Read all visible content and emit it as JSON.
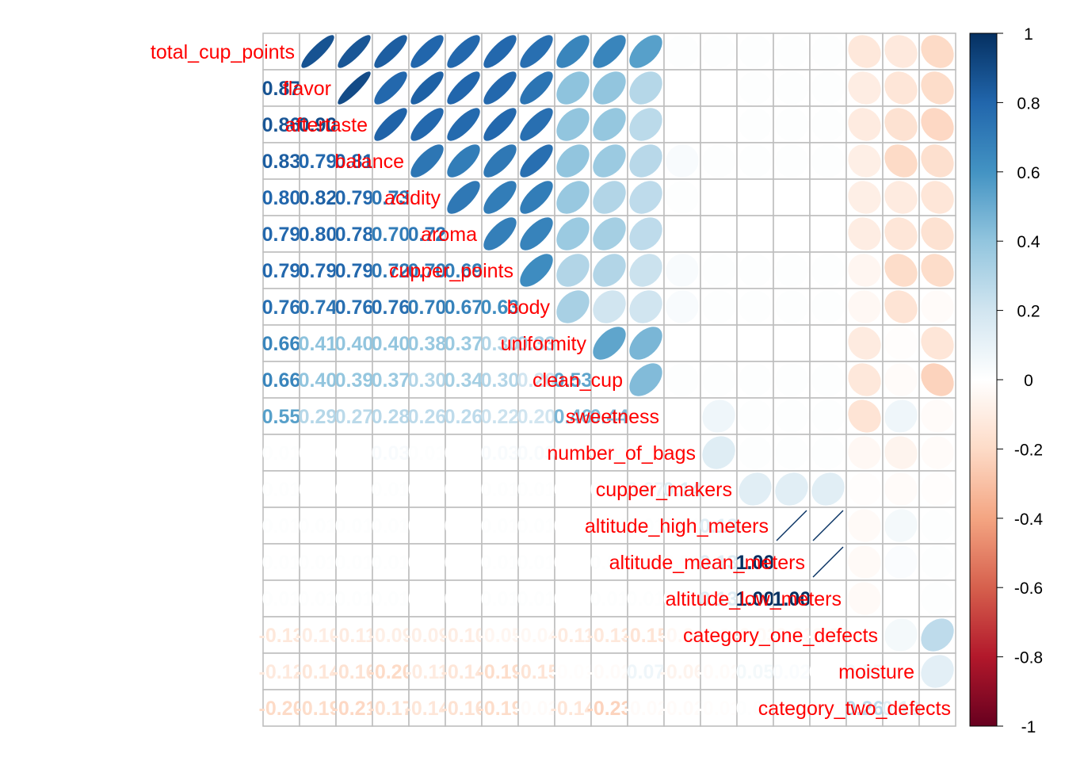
{
  "chart_data": {
    "type": "heatmap",
    "method": "mixed: ellipse (upper), number (lower)",
    "variables": [
      "total_cup_points",
      "flavor",
      "aftertaste",
      "balance",
      "acidity",
      "aroma",
      "cupper_points",
      "body",
      "uniformity",
      "clean_cup",
      "sweetness",
      "number_of_bags",
      "cupper_makers",
      "altitude_high_meters",
      "altitude_mean_meters",
      "altitude_low_meters",
      "category_one_defects",
      "moisture",
      "category_two_defects"
    ],
    "diag_labels": [
      "total_cup_points",
      "flavor",
      "aftertaste",
      "balance",
      "acidity",
      "aroma",
      "cupper_points",
      "body",
      "uniformity",
      "clean_cup",
      "sweetness",
      "number_of_bags",
      "cupper_makers",
      "altitude_high_meters",
      "altitude_mean_meters",
      "altitude_low_meters",
      "category_one_defects",
      "moisture",
      "category_two_defects"
    ],
    "matrix": [
      [
        1.0,
        0.87,
        0.86,
        0.83,
        0.8,
        0.79,
        0.79,
        0.76,
        0.66,
        0.66,
        0.55,
        0.01,
        0.01,
        0.01,
        0.01,
        0.01,
        -0.13,
        -0.12,
        -0.2
      ],
      [
        0.87,
        1.0,
        0.9,
        0.79,
        0.82,
        0.8,
        0.79,
        0.74,
        0.41,
        0.4,
        0.29,
        0.0,
        0.0,
        0.01,
        0.01,
        0.01,
        -0.1,
        -0.14,
        -0.19
      ],
      [
        0.86,
        0.9,
        1.0,
        0.81,
        0.79,
        0.78,
        0.79,
        0.76,
        0.4,
        0.39,
        0.27,
        0.0,
        0.0,
        0.01,
        0.01,
        0.01,
        -0.11,
        -0.16,
        -0.21
      ],
      [
        0.83,
        0.79,
        0.81,
        1.0,
        0.73,
        0.7,
        0.72,
        0.76,
        0.4,
        0.37,
        0.28,
        0.03,
        0.01,
        0.01,
        0.01,
        0.01,
        -0.09,
        -0.2,
        -0.17
      ],
      [
        0.8,
        0.82,
        0.79,
        0.73,
        1.0,
        0.72,
        0.7,
        0.7,
        0.38,
        0.3,
        0.26,
        0.01,
        0.0,
        0.0,
        0.0,
        0.0,
        -0.09,
        -0.11,
        -0.14
      ],
      [
        0.79,
        0.8,
        0.78,
        0.7,
        0.72,
        1.0,
        0.69,
        0.67,
        0.37,
        0.34,
        0.26,
        0.0,
        0.0,
        0.0,
        0.0,
        0.0,
        -0.1,
        -0.14,
        -0.16
      ],
      [
        0.79,
        0.79,
        0.79,
        0.72,
        0.7,
        0.69,
        1.0,
        0.63,
        0.3,
        0.3,
        0.22,
        0.03,
        0.01,
        0.01,
        0.01,
        0.01,
        -0.05,
        -0.19,
        -0.19
      ],
      [
        0.76,
        0.74,
        0.76,
        0.76,
        0.7,
        0.67,
        0.63,
        1.0,
        0.33,
        0.2,
        0.2,
        0.03,
        0.01,
        0.01,
        0.01,
        0.01,
        -0.04,
        -0.15,
        -0.02
      ],
      [
        0.66,
        0.41,
        0.4,
        0.4,
        0.38,
        0.37,
        0.3,
        0.33,
        1.0,
        0.53,
        0.46,
        0.0,
        0.0,
        0.0,
        0.0,
        0.0,
        -0.11,
        -0.01,
        -0.14
      ],
      [
        0.66,
        0.4,
        0.39,
        0.37,
        0.3,
        0.34,
        0.3,
        0.2,
        0.53,
        1.0,
        0.44,
        0.01,
        0.01,
        0.01,
        0.01,
        0.01,
        -0.13,
        -0.02,
        -0.23
      ],
      [
        0.55,
        0.29,
        0.27,
        0.28,
        0.26,
        0.26,
        0.22,
        0.2,
        0.46,
        0.44,
        1.0,
        0.0,
        0.07,
        0.01,
        0.01,
        0.01,
        -0.15,
        0.07,
        -0.02
      ],
      [
        0.01,
        0.0,
        0.0,
        0.03,
        0.01,
        0.0,
        0.03,
        0.03,
        0.0,
        0.01,
        0.0,
        1.0,
        0.14,
        0.01,
        0.01,
        0.01,
        -0.04,
        -0.06,
        -0.02
      ],
      [
        0.01,
        0.0,
        0.0,
        0.01,
        0.0,
        0.0,
        0.01,
        0.01,
        0.0,
        0.01,
        0.07,
        0.14,
        1.0,
        0.13,
        0.13,
        0.13,
        -0.01,
        -0.02,
        -0.01
      ],
      [
        0.01,
        0.01,
        0.01,
        0.01,
        0.0,
        0.0,
        0.01,
        0.01,
        0.0,
        0.01,
        0.01,
        0.01,
        0.13,
        1.0,
        1.0,
        1.0,
        -0.03,
        0.05,
        0.01
      ],
      [
        0.01,
        0.01,
        0.01,
        0.01,
        0.0,
        0.0,
        0.01,
        0.01,
        0.0,
        0.01,
        0.01,
        0.01,
        0.13,
        1.0,
        1.0,
        1.0,
        -0.03,
        0.02,
        0.01
      ],
      [
        0.01,
        0.01,
        0.01,
        0.01,
        0.0,
        0.0,
        0.01,
        0.01,
        0.0,
        0.01,
        0.01,
        0.01,
        0.13,
        1.0,
        1.0,
        1.0,
        -0.03,
        0.0,
        0.01
      ],
      [
        -0.13,
        -0.1,
        -0.11,
        -0.09,
        -0.09,
        -0.1,
        -0.05,
        -0.04,
        -0.11,
        -0.13,
        -0.15,
        -0.04,
        -0.01,
        -0.03,
        -0.03,
        -0.03,
        1.0,
        0.05,
        0.26
      ],
      [
        -0.12,
        -0.14,
        -0.16,
        -0.2,
        -0.11,
        -0.14,
        -0.19,
        -0.15,
        -0.01,
        -0.02,
        0.07,
        -0.06,
        -0.02,
        0.05,
        0.02,
        0.0,
        0.05,
        1.0,
        0.12
      ],
      [
        -0.2,
        -0.19,
        -0.21,
        -0.17,
        -0.14,
        -0.16,
        -0.19,
        -0.02,
        -0.14,
        -0.23,
        -0.02,
        -0.02,
        -0.01,
        0.01,
        0.01,
        0.01,
        0.26,
        0.12,
        1.0
      ]
    ],
    "colorbar": {
      "range": [
        -1,
        1
      ],
      "tick_labels": [
        "1",
        "0.8",
        "0.6",
        "0.4",
        "0.2",
        "0",
        "-0.2",
        "-0.4",
        "-0.6",
        "-0.8",
        "-1"
      ],
      "palette": [
        "#67001F",
        "#B2182B",
        "#D6604D",
        "#F4A582",
        "#FDDBC7",
        "#FFFFFF",
        "#D1E5F0",
        "#92C5DE",
        "#4393C3",
        "#2166AC",
        "#053061"
      ]
    },
    "label_color": "#FF0000",
    "grid_color": "#BEBEBE"
  }
}
